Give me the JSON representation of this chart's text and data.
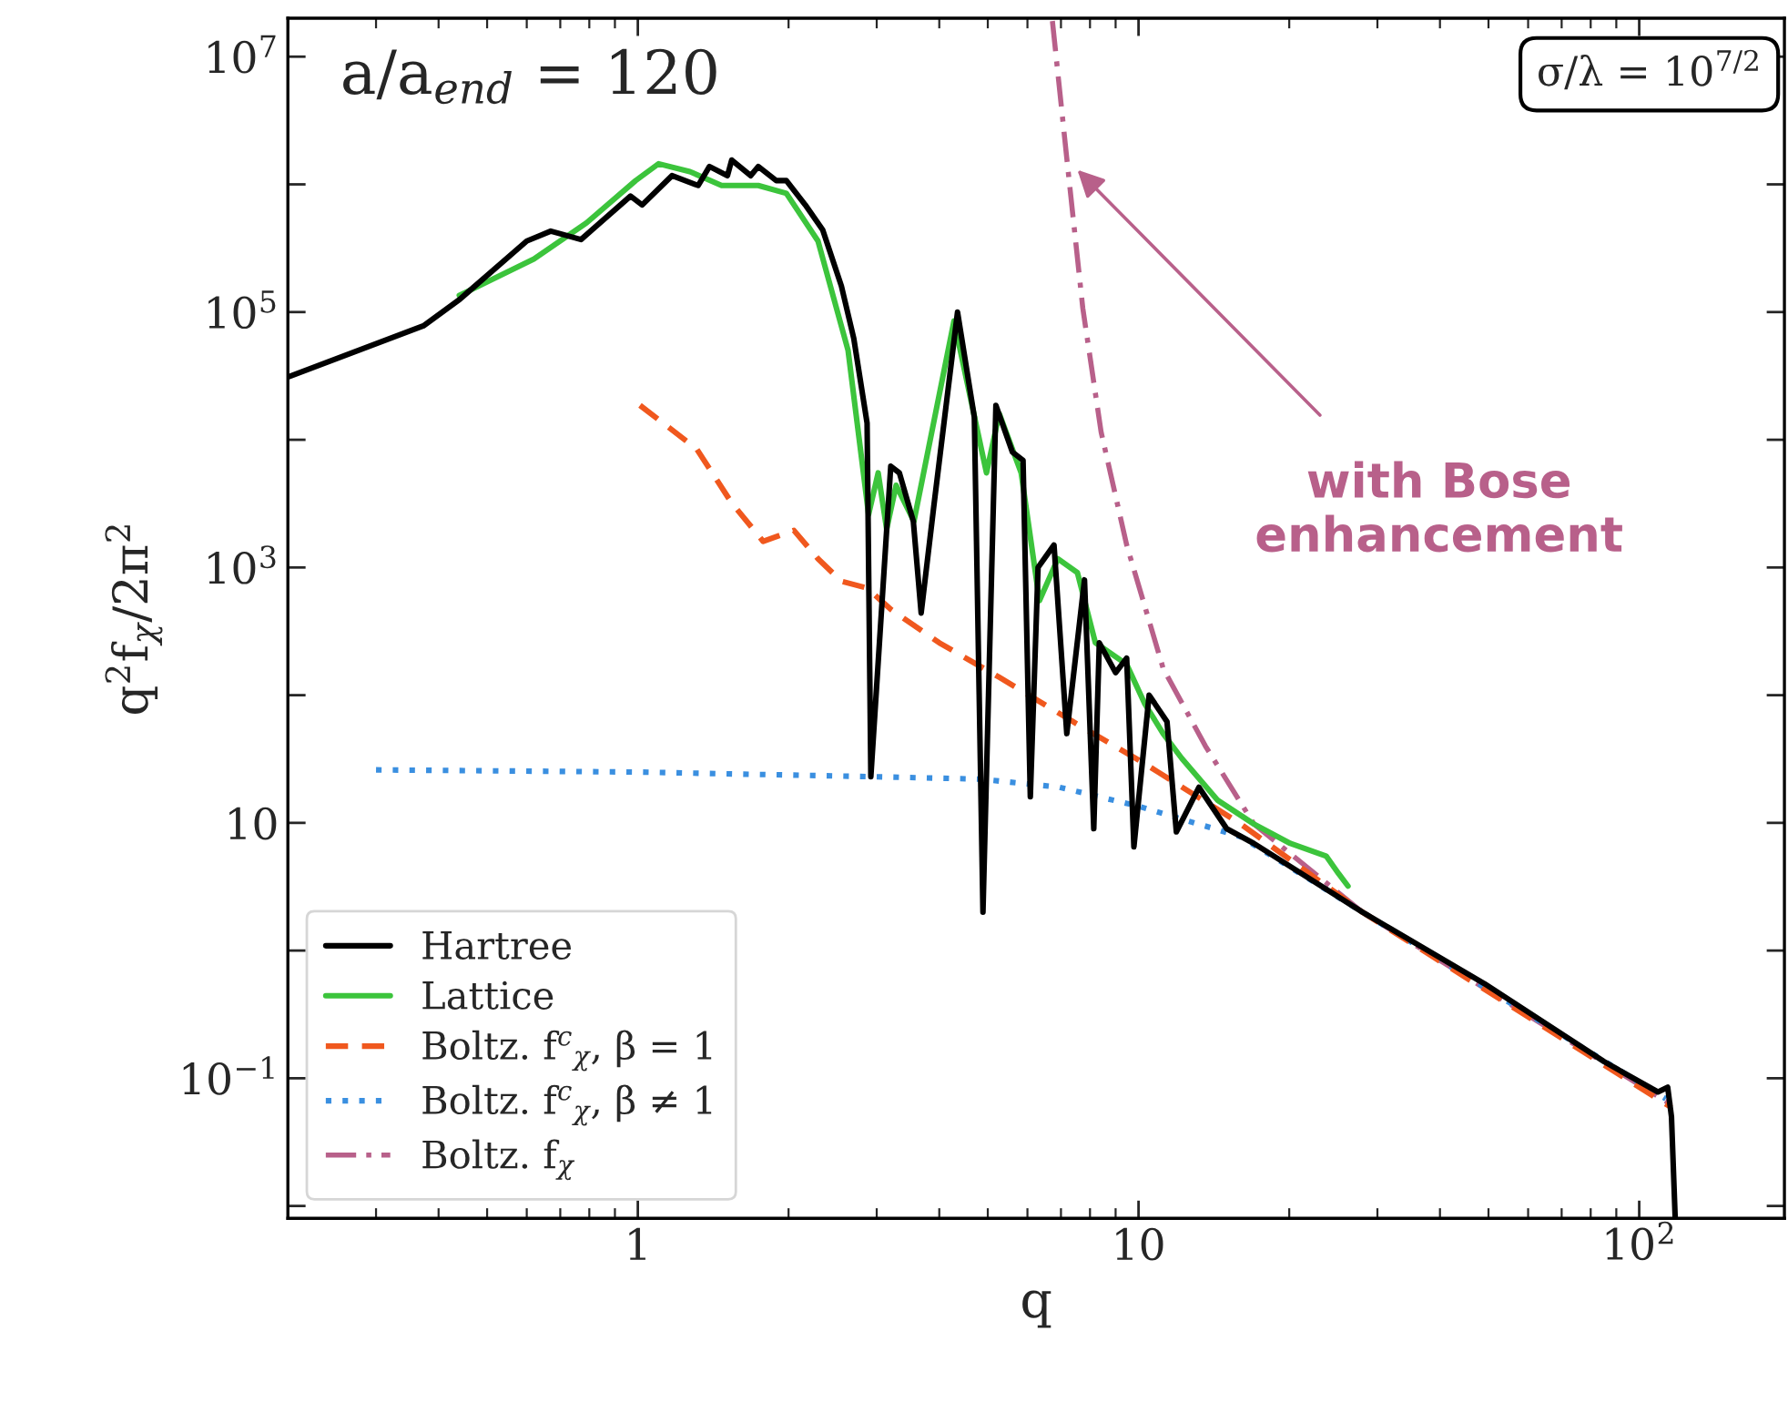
{
  "chart_data": {
    "type": "line",
    "xlabel": "q",
    "ylabel": "q$^{2}$f$_{χ}$/2π$^{2}$",
    "log": "xy",
    "grid": false,
    "legend": "bottom left",
    "xlim": [
      0.2,
      195
    ],
    "ylim": [
      0.008,
      20000000.0
    ],
    "xticks": [
      {
        "value": 1,
        "label": "1"
      },
      {
        "value": 10,
        "label": "10"
      },
      {
        "value": 100,
        "label": "10$^{2}$"
      }
    ],
    "yticks": [
      {
        "value": 10000000,
        "label": "10$^{7}$"
      },
      {
        "value": 1000000,
        "label": null
      },
      {
        "value": 100000,
        "label": "10$^{5}$"
      },
      {
        "value": 10000,
        "label": null
      },
      {
        "value": 1000,
        "label": "10$^{3}$"
      },
      {
        "value": 100,
        "label": null
      },
      {
        "value": 10,
        "label": "10"
      },
      {
        "value": 1,
        "label": null
      },
      {
        "value": 0.1,
        "label": "10$^{−1}$"
      },
      {
        "value": 0.01,
        "label": null
      }
    ],
    "annotations": [
      "a/a$_{end}$ = 120",
      "σ/λ = 10$^{7/2}$",
      {
        "text": "with Bose\nenhancement",
        "x": 7.55,
        "y": 1300000
      }
    ],
    "series": [
      {
        "name": "Hartree",
        "color": "#000000",
        "line_style": "solid",
        "x": [
          0.2,
          0.373,
          0.441,
          0.6,
          0.67,
          0.77,
          0.967,
          1.02,
          1.17,
          1.32,
          1.39,
          1.51,
          1.54,
          1.68,
          1.74,
          1.89,
          1.98,
          2.16,
          2.34,
          2.55,
          2.7,
          2.87,
          2.92,
          3.2,
          3.33,
          3.55,
          3.68,
          3.9,
          4.35,
          4.7,
          4.89,
          5.19,
          5.6,
          5.88,
          6.08,
          6.3,
          6.78,
          7.19,
          7.8,
          8.14,
          8.35,
          9.0,
          9.47,
          9.79,
          10.5,
          11.4,
          11.9,
          13.2,
          15,
          17,
          28,
          49.1,
          85.1,
          109,
          114,
          116,
          118
        ],
        "values": [
          31000,
          78000,
          126000,
          360000,
          430000,
          370000,
          810000,
          690000,
          1170000,
          980000,
          1380000,
          1170000,
          1550000,
          1170000,
          1380000,
          1070000,
          1070000,
          690000,
          440000,
          160000,
          62000,
          13500,
          23,
          6200,
          5500,
          2300,
          440,
          3000,
          100000,
          15000,
          2.0,
          18600,
          8000,
          6900,
          16,
          1000,
          1500,
          50,
          800,
          9,
          257,
          150,
          195,
          6.5,
          100,
          62,
          8.5,
          19,
          9,
          6.9,
          2.0,
          0.55,
          0.135,
          0.078,
          0.085,
          0.05,
          0.008
        ]
      },
      {
        "name": "Lattice",
        "color": "#3cc43c",
        "line_style": "solid",
        "x": [
          0.44,
          0.62,
          0.79,
          0.99,
          1.1,
          1.27,
          1.47,
          1.74,
          1.98,
          2.29,
          2.63,
          2.89,
          3.02,
          3.14,
          3.28,
          3.56,
          4.28,
          4.97,
          5.27,
          5.83,
          6.34,
          6.9,
          7.55,
          8.2,
          9.47,
          10.3,
          11.2,
          12.2,
          14.4,
          17,
          20.1,
          23.7,
          25.1,
          26.2
        ],
        "values": [
          135000,
          260000,
          500000,
          1070000,
          1450000,
          1260000,
          980000,
          980000,
          850000,
          360000,
          50000,
          2600,
          5500,
          2000,
          4400,
          2300,
          85000,
          5500,
          16000,
          5500,
          550,
          1170,
          910,
          257,
          174,
          85,
          50,
          32,
          15,
          9.8,
          6.9,
          5.5,
          4.0,
          3.2
        ]
      },
      {
        "name": "Boltz. f$^{c}$$_{χ}$, β = 1",
        "color": "#f0581e",
        "line_style": "dashed",
        "x": [
          1.01,
          1.31,
          1.54,
          1.78,
          2.05,
          2.29,
          2.55,
          2.87,
          3.2,
          4.0,
          5.27,
          7.4,
          10.3,
          16,
          28,
          116
        ],
        "values": [
          18600,
          8500,
          3200,
          1600,
          1950,
          1170,
          780,
          690,
          470,
          257,
          138,
          62,
          29,
          9.8,
          2.0,
          0.059
        ]
      },
      {
        "name": "Boltz. f$^{c}$$_{χ}$, β ≠ 1",
        "color": "#3a8fe0",
        "line_style": "dotted",
        "x": [
          0.3,
          1.0,
          2.94,
          4.85,
          6.95,
          10,
          16,
          28,
          113
        ],
        "values": [
          26,
          25,
          23,
          22,
          19,
          13.5,
          7.8,
          2.0,
          0.069
        ]
      },
      {
        "name": "Boltz. f$_{χ}$",
        "color": "#b8608a",
        "line_style": "dashdot",
        "x": [
          6.73,
          7.19,
          7.74,
          8.42,
          9.47,
          11.2,
          13.6,
          17,
          28,
          116
        ],
        "values": [
          19000000,
          1600000,
          107000,
          11500,
          1500,
          162,
          40,
          9.8,
          2.0,
          0.062
        ]
      }
    ]
  }
}
